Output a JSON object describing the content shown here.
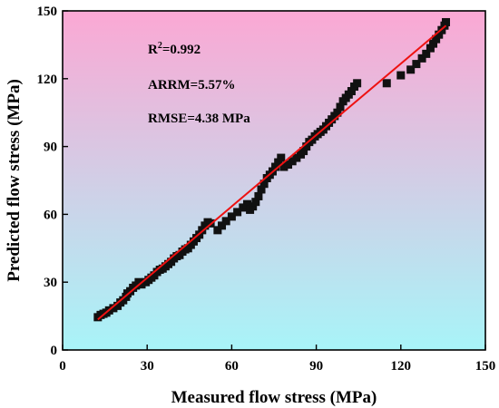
{
  "chart_data": {
    "type": "scatter",
    "title": "",
    "xlabel": "Measured flow stress (MPa)",
    "ylabel": "Predicted flow stress (MPa)",
    "xlim": [
      0,
      150
    ],
    "ylim": [
      0,
      150
    ],
    "xticks": [
      0,
      30,
      60,
      90,
      120,
      150
    ],
    "yticks": [
      0,
      30,
      60,
      90,
      120,
      150
    ],
    "grid": false,
    "background_gradient": [
      "#fba8d4",
      "#a8f4f8"
    ],
    "annotations": {
      "r2_prefix": "R",
      "r2_sup": "2",
      "r2_value": "=0.992",
      "arrm": "ARRM=5.57%",
      "rmse": "RMSE=4.38 MPa"
    },
    "series": [
      {
        "type": "scatter",
        "marker": "square",
        "color": "#111111",
        "points": [
          [
            12.5,
            14.5
          ],
          [
            13.5,
            15.5
          ],
          [
            14.5,
            16.0
          ],
          [
            15.5,
            16.5
          ],
          [
            16.5,
            17.5
          ],
          [
            18.0,
            18.5
          ],
          [
            19.5,
            19.5
          ],
          [
            20.5,
            21.0
          ],
          [
            21.5,
            22.0
          ],
          [
            22.5,
            23.5
          ],
          [
            23.0,
            25.0
          ],
          [
            24.0,
            26.0
          ],
          [
            25.0,
            27.5
          ],
          [
            26.0,
            28.5
          ],
          [
            27.0,
            30.0
          ],
          [
            28.0,
            29.0
          ],
          [
            29.5,
            30.0
          ],
          [
            30.5,
            31.0
          ],
          [
            31.5,
            32.0
          ],
          [
            32.5,
            33.0
          ],
          [
            33.5,
            34.5
          ],
          [
            34.5,
            35.5
          ],
          [
            35.5,
            36.0
          ],
          [
            36.5,
            37.0
          ],
          [
            37.5,
            38.0
          ],
          [
            38.5,
            39.0
          ],
          [
            39.5,
            40.5
          ],
          [
            40.5,
            41.5
          ],
          [
            41.5,
            42.0
          ],
          [
            42.5,
            43.5
          ],
          [
            43.5,
            44.5
          ],
          [
            44.5,
            45.0
          ],
          [
            45.5,
            46.5
          ],
          [
            46.5,
            48.0
          ],
          [
            47.5,
            49.5
          ],
          [
            48.5,
            51.0
          ],
          [
            49.5,
            53.0
          ],
          [
            50.5,
            55.0
          ],
          [
            51.5,
            56.5
          ],
          [
            52.5,
            56.0
          ],
          [
            55.0,
            53.0
          ],
          [
            56.5,
            55.0
          ],
          [
            58.0,
            57.0
          ],
          [
            60.0,
            59.0
          ],
          [
            62.0,
            61.0
          ],
          [
            64.0,
            63.0
          ],
          [
            65.5,
            64.5
          ],
          [
            66.5,
            62.0
          ],
          [
            67.5,
            63.5
          ],
          [
            68.5,
            65.5
          ],
          [
            69.5,
            68.0
          ],
          [
            70.5,
            71.0
          ],
          [
            71.5,
            73.5
          ],
          [
            72.5,
            76.0
          ],
          [
            73.5,
            77.5
          ],
          [
            74.5,
            79.0
          ],
          [
            75.5,
            81.0
          ],
          [
            76.5,
            83.0
          ],
          [
            77.5,
            85.0
          ],
          [
            78.5,
            81.0
          ],
          [
            80.0,
            82.0
          ],
          [
            81.5,
            83.5
          ],
          [
            83.0,
            85.0
          ],
          [
            84.5,
            86.5
          ],
          [
            85.5,
            88.0
          ],
          [
            86.5,
            90.0
          ],
          [
            87.5,
            92.0
          ],
          [
            88.5,
            93.0
          ],
          [
            89.5,
            94.5
          ],
          [
            90.5,
            95.5
          ],
          [
            91.5,
            96.5
          ],
          [
            92.5,
            97.5
          ],
          [
            93.5,
            99.0
          ],
          [
            94.5,
            100.5
          ],
          [
            95.5,
            102.0
          ],
          [
            96.5,
            103.5
          ],
          [
            97.5,
            105.0
          ],
          [
            98.5,
            107.5
          ],
          [
            99.5,
            110.0
          ],
          [
            100.5,
            111.5
          ],
          [
            101.5,
            113.0
          ],
          [
            102.5,
            114.5
          ],
          [
            103.5,
            116.5
          ],
          [
            104.5,
            118.0
          ],
          [
            115.0,
            118.0
          ],
          [
            120.0,
            121.5
          ],
          [
            123.5,
            124.0
          ],
          [
            125.5,
            126.5
          ],
          [
            127.5,
            129.0
          ],
          [
            129.0,
            131.0
          ],
          [
            130.5,
            133.5
          ],
          [
            131.5,
            135.5
          ],
          [
            132.5,
            137.5
          ],
          [
            133.5,
            139.5
          ],
          [
            134.5,
            141.5
          ],
          [
            135.5,
            143.5
          ],
          [
            136.0,
            145.0
          ]
        ]
      },
      {
        "type": "line",
        "color": "#ee1111",
        "points": [
          [
            12.5,
            13.5
          ],
          [
            136.0,
            143.5
          ]
        ]
      }
    ]
  }
}
